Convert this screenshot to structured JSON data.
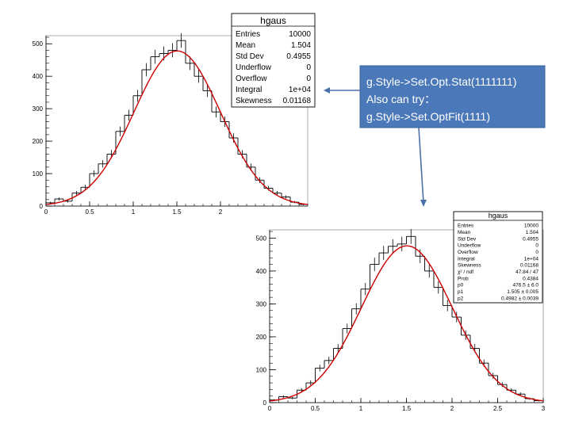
{
  "colors": {
    "histogram": "#000000",
    "fit": "#cc0000",
    "callout_fill": "#4a78b8",
    "callout_border": "#3a5f94",
    "connector": "#4a6fa5"
  },
  "callout": {
    "lines": [
      "g.Style->Set.Opt.Stat(1111111)",
      "Also can try：",
      "g.Style->Set.OptFit(1111)"
    ]
  },
  "chart_data": [
    {
      "type": "bar",
      "title": "",
      "xlim": [
        0,
        3
      ],
      "ylim": [
        0,
        525
      ],
      "x_ticks": [
        "0",
        "0.5",
        "1",
        "1.5",
        "2"
      ],
      "y_ticks": [
        "0",
        "100",
        "200",
        "300",
        "400",
        "500"
      ],
      "bin_width": 0.1,
      "bin_edges_start": 0.0,
      "values": [
        10,
        22,
        15,
        40,
        58,
        100,
        130,
        160,
        230,
        280,
        340,
        420,
        460,
        470,
        480,
        510,
        440,
        400,
        355,
        290,
        260,
        210,
        160,
        120,
        80,
        55,
        40,
        28,
        12,
        5
      ],
      "fit": {
        "type": "gaus",
        "constant": 478,
        "mean": 1.504,
        "sigma": 0.4955
      },
      "stats": {
        "title": "hgaus",
        "rows": [
          {
            "label": "Entries",
            "value": "10000"
          },
          {
            "label": "Mean",
            "value": "1.504"
          },
          {
            "label": "Std Dev",
            "value": "0.4955"
          },
          {
            "label": "Underflow",
            "value": "0"
          },
          {
            "label": "Overflow",
            "value": "0"
          },
          {
            "label": "Integral",
            "value": "1e+04"
          },
          {
            "label": "Skewness",
            "value": "0.01168"
          }
        ]
      }
    },
    {
      "type": "bar",
      "title": "",
      "xlim": [
        0,
        3
      ],
      "ylim": [
        0,
        525
      ],
      "x_ticks": [
        "0",
        "0.5",
        "1",
        "1.5",
        "2",
        "2.5",
        "3"
      ],
      "y_ticks": [
        "0",
        "100",
        "200",
        "300",
        "400",
        "500"
      ],
      "bin_width": 0.1,
      "bin_edges_start": 0.0,
      "values": [
        8,
        18,
        14,
        38,
        60,
        105,
        128,
        165,
        225,
        285,
        345,
        420,
        455,
        475,
        482,
        505,
        445,
        400,
        350,
        295,
        260,
        205,
        165,
        120,
        82,
        55,
        38,
        26,
        12,
        6
      ],
      "fit": {
        "type": "gaus",
        "constant": 476.5,
        "mean": 1.505,
        "sigma": 0.4982
      },
      "stats": {
        "title": "hgaus",
        "rows": [
          {
            "label": "Entries",
            "value": "10000"
          },
          {
            "label": "Mean",
            "value": "1.504"
          },
          {
            "label": "Std Dev",
            "value": "0.4955"
          },
          {
            "label": "Underflow",
            "value": "0"
          },
          {
            "label": "Overflow",
            "value": "0"
          },
          {
            "label": "Integral",
            "value": "1e+04"
          },
          {
            "label": "Skewness",
            "value": "0.01168"
          },
          {
            "label": "χ² / ndf",
            "value": "47.84 / 47"
          },
          {
            "label": "Prob",
            "value": "0.4384"
          },
          {
            "label": "p0",
            "value": "476.5 ± 6.0"
          },
          {
            "label": "p1",
            "value": "1.505 ± 0.005"
          },
          {
            "label": "p2",
            "value": "0.4982 ± 0.0039"
          }
        ]
      }
    }
  ]
}
